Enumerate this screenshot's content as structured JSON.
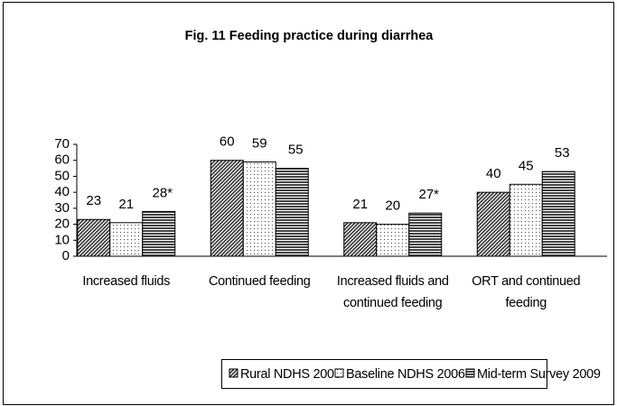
{
  "chart_data": {
    "type": "bar",
    "title": "Fig. 11  Feeding practice during diarrhea",
    "categories": [
      "Increased fluids",
      "Continued feeding",
      "Increased fluids and continued feeding",
      "ORT and continued feeding"
    ],
    "series": [
      {
        "name": "Rural NDHS 2006",
        "color": "#555555",
        "pattern": "diagonal",
        "values": [
          23,
          60,
          21,
          40
        ]
      },
      {
        "name": "Baseline NDHS 2006",
        "color": "#ffffff",
        "pattern": "dots",
        "values": [
          21,
          59,
          20,
          45
        ]
      },
      {
        "name": "Mid-term Survey 2009",
        "color": "#555555",
        "pattern": "horizontal",
        "values": [
          28,
          55,
          27,
          53
        ],
        "value_labels": [
          "28*",
          "55",
          "27*",
          "53"
        ]
      }
    ],
    "ylim": [
      0,
      70
    ],
    "yticks": [
      0,
      10,
      20,
      30,
      40,
      50,
      60,
      70
    ],
    "grid": false,
    "legend": "bottom"
  }
}
